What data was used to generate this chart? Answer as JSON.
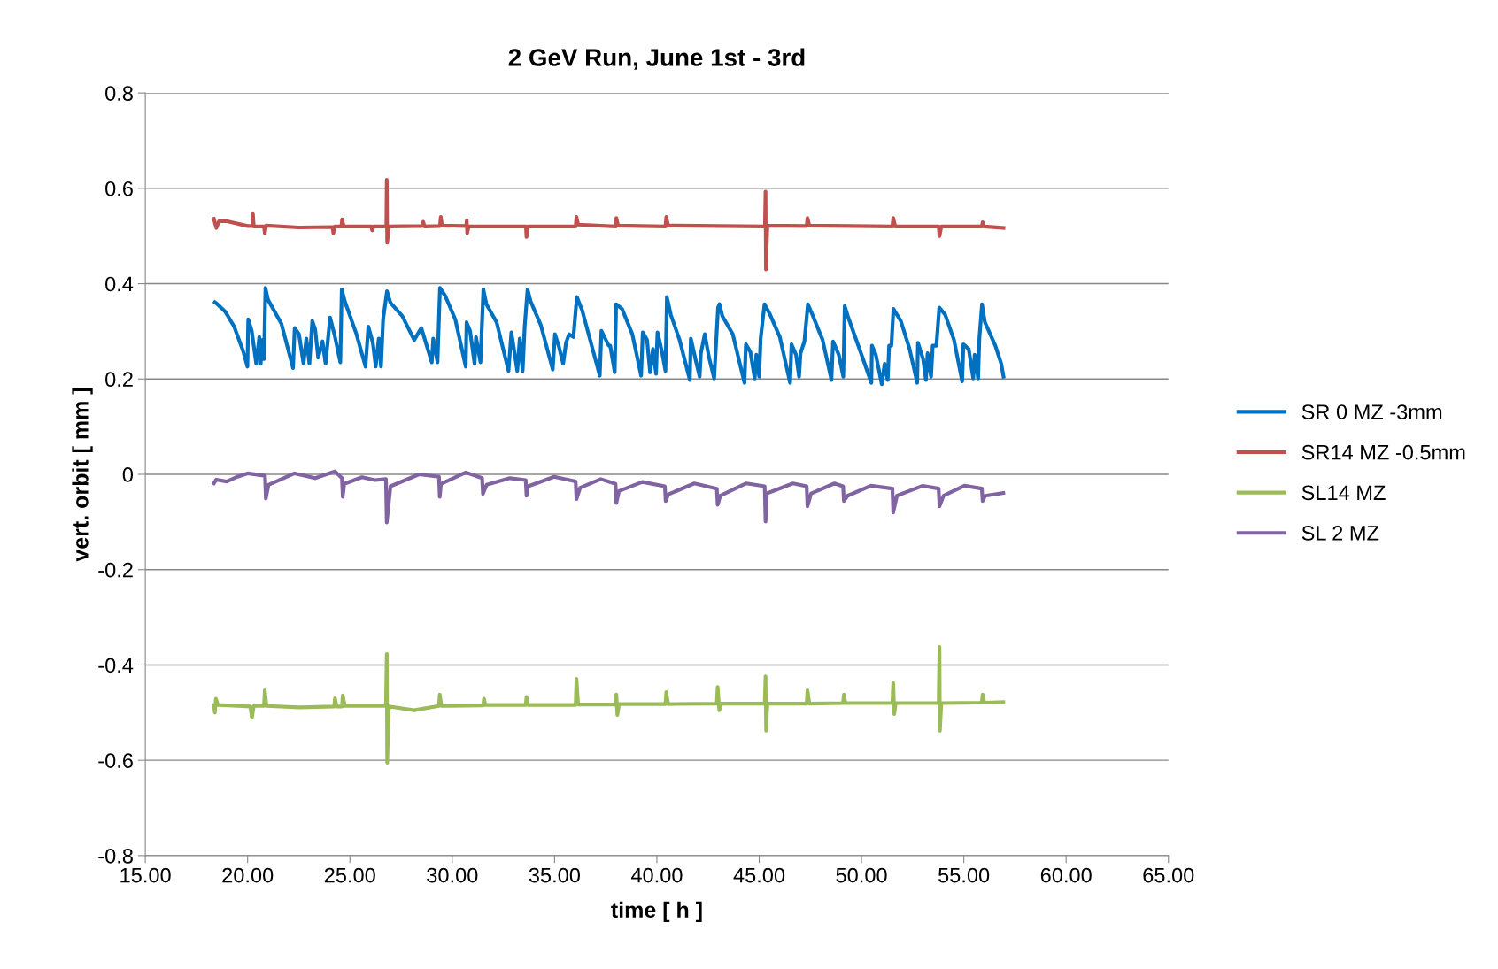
{
  "chart_data": {
    "type": "line",
    "title": "2 GeV Run, June 1st - 3rd",
    "xlabel": "time [ h ]",
    "ylabel": "vert. orbit [ mm ]",
    "xlim": [
      15,
      65
    ],
    "ylim": [
      -0.8,
      0.8
    ],
    "xticks": [
      {
        "value": 15,
        "label": "15.00"
      },
      {
        "value": 20,
        "label": "20.00"
      },
      {
        "value": 25,
        "label": "25.00"
      },
      {
        "value": 30,
        "label": "30.00"
      },
      {
        "value": 35,
        "label": "35.00"
      },
      {
        "value": 40,
        "label": "40.00"
      },
      {
        "value": 45,
        "label": "45.00"
      },
      {
        "value": 50,
        "label": "50.00"
      },
      {
        "value": 55,
        "label": "55.00"
      },
      {
        "value": 60,
        "label": "60.00"
      },
      {
        "value": 65,
        "label": "65.00"
      }
    ],
    "yticks": [
      {
        "value": -0.8,
        "label": "-0.8"
      },
      {
        "value": -0.6,
        "label": "-0.6"
      },
      {
        "value": -0.4,
        "label": "-0.4"
      },
      {
        "value": -0.2,
        "label": "-0.2"
      },
      0,
      0.2,
      0.4,
      0.6,
      0.8
    ],
    "grid": "y",
    "legend": "right",
    "marker": "none",
    "line_style": "solid",
    "series": [
      {
        "name": "SR 0 MZ -3mm",
        "color": "#0070c0",
        "x": [
          18.4,
          18.5,
          18.91,
          19.34,
          19.77,
          19.99,
          20.03,
          20.2,
          20.42,
          20.57,
          20.64,
          20.72,
          20.8,
          20.87,
          21.0,
          21.65,
          22.22,
          22.3,
          22.51,
          22.73,
          22.87,
          23.02,
          23.16,
          23.3,
          23.45,
          23.66,
          23.81,
          24.03,
          24.24,
          24.53,
          24.6,
          24.75,
          25.32,
          25.76,
          25.9,
          26.12,
          26.26,
          26.41,
          26.52,
          26.62,
          26.81,
          26.98,
          27.56,
          28.14,
          28.49,
          29.0,
          29.07,
          29.28,
          29.4,
          29.65,
          30.15,
          30.66,
          30.7,
          30.87,
          31.09,
          31.16,
          31.38,
          31.52,
          31.67,
          32.17,
          32.75,
          32.89,
          33.18,
          33.3,
          33.44,
          33.54,
          33.68,
          33.83,
          34.33,
          34.91,
          35.02,
          35.2,
          35.42,
          35.56,
          35.71,
          35.92,
          36.09,
          36.35,
          37.21,
          37.29,
          37.65,
          37.72,
          37.94,
          38.01,
          38.3,
          38.8,
          39.23,
          39.31,
          39.52,
          39.67,
          39.81,
          39.96,
          40.03,
          40.25,
          40.42,
          40.49,
          40.68,
          41.11,
          41.61,
          41.66,
          41.9,
          42.09,
          42.15,
          42.34,
          42.55,
          42.8,
          42.99,
          43.06,
          43.2,
          43.71,
          44.28,
          44.35,
          44.57,
          44.78,
          44.86,
          45.0,
          45.07,
          45.26,
          45.5,
          46.01,
          46.51,
          46.58,
          46.8,
          46.95,
          47.02,
          47.21,
          47.38,
          47.6,
          48.1,
          48.53,
          48.61,
          48.89,
          49.11,
          49.18,
          49.33,
          50.05,
          50.48,
          50.51,
          50.7,
          50.99,
          51.13,
          51.28,
          51.35,
          51.46,
          51.56,
          51.92,
          52.35,
          52.72,
          52.76,
          53.01,
          53.15,
          53.23,
          53.4,
          53.48,
          53.66,
          53.8,
          54.09,
          54.52,
          54.92,
          54.98,
          55.24,
          55.46,
          55.53,
          55.7,
          55.76,
          55.89,
          56.03,
          56.54,
          56.83,
          56.94
        ],
        "values": [
          0.361,
          0.358,
          0.341,
          0.31,
          0.26,
          0.226,
          0.325,
          0.301,
          0.232,
          0.288,
          0.232,
          0.282,
          0.242,
          0.391,
          0.366,
          0.316,
          0.223,
          0.307,
          0.294,
          0.232,
          0.285,
          0.232,
          0.322,
          0.304,
          0.245,
          0.279,
          0.232,
          0.329,
          0.294,
          0.235,
          0.388,
          0.363,
          0.294,
          0.226,
          0.31,
          0.276,
          0.226,
          0.285,
          0.226,
          0.325,
          0.384,
          0.36,
          0.332,
          0.282,
          0.307,
          0.235,
          0.285,
          0.235,
          0.391,
          0.375,
          0.325,
          0.226,
          0.319,
          0.301,
          0.232,
          0.288,
          0.235,
          0.388,
          0.357,
          0.319,
          0.217,
          0.298,
          0.217,
          0.285,
          0.217,
          0.31,
          0.388,
          0.363,
          0.313,
          0.22,
          0.294,
          0.27,
          0.232,
          0.276,
          0.294,
          0.288,
          0.372,
          0.344,
          0.207,
          0.301,
          0.27,
          0.27,
          0.214,
          0.357,
          0.347,
          0.294,
          0.207,
          0.298,
          0.282,
          0.214,
          0.263,
          0.211,
          0.298,
          0.257,
          0.217,
          0.372,
          0.335,
          0.282,
          0.198,
          0.285,
          0.239,
          0.205,
          0.254,
          0.294,
          0.245,
          0.201,
          0.35,
          0.357,
          0.332,
          0.294,
          0.192,
          0.273,
          0.257,
          0.201,
          0.251,
          0.205,
          0.285,
          0.357,
          0.338,
          0.288,
          0.192,
          0.273,
          0.251,
          0.205,
          0.254,
          0.279,
          0.357,
          0.335,
          0.282,
          0.198,
          0.279,
          0.251,
          0.205,
          0.353,
          0.332,
          0.245,
          0.192,
          0.27,
          0.251,
          0.189,
          0.232,
          0.198,
          0.27,
          0.27,
          0.347,
          0.322,
          0.263,
          0.192,
          0.276,
          0.242,
          0.198,
          0.254,
          0.205,
          0.27,
          0.27,
          0.35,
          0.335,
          0.282,
          0.195,
          0.273,
          0.263,
          0.201,
          0.251,
          0.201,
          0.285,
          0.357,
          0.319,
          0.27,
          0.232,
          0.205
        ]
      },
      {
        "name": "SR14 MZ -0.5mm",
        "color": "#c0504d",
        "x": [
          18.35,
          18.47,
          18.6,
          19.0,
          20.0,
          20.24,
          20.26,
          20.3,
          20.8,
          20.84,
          20.9,
          22.5,
          24.15,
          24.19,
          24.25,
          24.58,
          24.62,
          24.7,
          26.05,
          26.09,
          26.15,
          26.78,
          26.8,
          26.82,
          26.9,
          28.55,
          28.58,
          28.65,
          29.4,
          29.44,
          29.5,
          30.68,
          30.71,
          30.73,
          30.8,
          33.6,
          33.63,
          33.7,
          36.03,
          36.07,
          36.15,
          37.98,
          38.02,
          38.1,
          40.42,
          40.46,
          40.55,
          45.28,
          45.31,
          45.33,
          45.4,
          47.32,
          47.36,
          47.45,
          51.51,
          51.55,
          51.65,
          53.77,
          53.81,
          53.9,
          55.88,
          55.92,
          56.0,
          56.94
        ],
        "values": [
          0.536,
          0.517,
          0.531,
          0.531,
          0.521,
          0.521,
          0.546,
          0.52,
          0.52,
          0.506,
          0.522,
          0.518,
          0.519,
          0.506,
          0.52,
          0.52,
          0.535,
          0.52,
          0.52,
          0.512,
          0.52,
          0.52,
          0.618,
          0.486,
          0.52,
          0.521,
          0.53,
          0.52,
          0.521,
          0.54,
          0.522,
          0.521,
          0.533,
          0.506,
          0.52,
          0.52,
          0.498,
          0.52,
          0.52,
          0.54,
          0.524,
          0.52,
          0.538,
          0.522,
          0.52,
          0.54,
          0.522,
          0.52,
          0.593,
          0.43,
          0.522,
          0.521,
          0.538,
          0.522,
          0.52,
          0.538,
          0.52,
          0.52,
          0.5,
          0.52,
          0.52,
          0.529,
          0.52,
          0.517
        ]
      },
      {
        "name": "SL14 MZ",
        "color": "#9bbb59",
        "x": [
          18.35,
          18.4,
          18.45,
          18.55,
          20.13,
          20.21,
          20.3,
          20.8,
          20.84,
          20.92,
          22.54,
          24.23,
          24.27,
          24.35,
          24.61,
          24.65,
          24.75,
          26.76,
          26.8,
          26.82,
          26.9,
          28.13,
          29.35,
          29.39,
          29.47,
          31.51,
          31.55,
          31.62,
          33.59,
          33.63,
          33.7,
          36.03,
          36.07,
          36.15,
          37.98,
          38.02,
          38.07,
          38.15,
          40.42,
          40.46,
          40.55,
          42.93,
          42.97,
          43.05,
          43.15,
          45.27,
          45.31,
          45.34,
          45.4,
          47.32,
          47.36,
          47.45,
          49.1,
          49.14,
          49.22,
          51.51,
          51.55,
          51.6,
          51.67,
          53.77,
          53.81,
          53.83,
          53.9,
          55.88,
          55.92,
          56.0,
          56.93
        ],
        "values": [
          -0.484,
          -0.5,
          -0.471,
          -0.484,
          -0.487,
          -0.511,
          -0.486,
          -0.486,
          -0.453,
          -0.486,
          -0.489,
          -0.487,
          -0.47,
          -0.487,
          -0.487,
          -0.464,
          -0.486,
          -0.486,
          -0.377,
          -0.605,
          -0.487,
          -0.495,
          -0.486,
          -0.462,
          -0.486,
          -0.485,
          -0.471,
          -0.484,
          -0.484,
          -0.467,
          -0.484,
          -0.484,
          -0.429,
          -0.483,
          -0.483,
          -0.462,
          -0.505,
          -0.482,
          -0.482,
          -0.457,
          -0.482,
          -0.481,
          -0.446,
          -0.495,
          -0.481,
          -0.481,
          -0.424,
          -0.538,
          -0.481,
          -0.481,
          -0.453,
          -0.481,
          -0.48,
          -0.462,
          -0.48,
          -0.48,
          -0.438,
          -0.503,
          -0.48,
          -0.48,
          -0.362,
          -0.538,
          -0.48,
          -0.479,
          -0.462,
          -0.479,
          -0.478
        ]
      },
      {
        "name": "SL 2 MZ",
        "color": "#8064a2",
        "x": [
          18.35,
          18.47,
          18.98,
          19.5,
          20.0,
          20.85,
          20.89,
          21.02,
          22.29,
          23.3,
          24.27,
          24.61,
          24.65,
          24.72,
          25.59,
          26.22,
          26.76,
          26.8,
          26.98,
          28.38,
          29.35,
          29.39,
          29.45,
          30.66,
          31.46,
          31.5,
          31.68,
          32.82,
          33.59,
          33.63,
          33.71,
          34.98,
          36.03,
          36.07,
          36.25,
          37.26,
          37.98,
          38.02,
          38.15,
          39.29,
          40.39,
          40.43,
          40.56,
          41.83,
          42.93,
          42.97,
          43.1,
          44.37,
          45.27,
          45.31,
          45.38,
          46.65,
          47.32,
          47.36,
          47.54,
          48.68,
          49.1,
          49.14,
          49.32,
          50.46,
          51.51,
          51.55,
          51.73,
          53.0,
          53.77,
          53.81,
          54.01,
          55.03,
          55.88,
          55.92,
          56.04,
          56.93
        ],
        "values": [
          -0.019,
          -0.011,
          -0.015,
          -0.005,
          0.002,
          -0.003,
          -0.051,
          -0.022,
          0.002,
          -0.008,
          0.006,
          -0.008,
          -0.047,
          -0.02,
          -0.006,
          -0.012,
          -0.01,
          -0.101,
          -0.025,
          0.0,
          -0.005,
          -0.047,
          -0.02,
          0.004,
          -0.008,
          -0.041,
          -0.022,
          -0.008,
          -0.012,
          -0.045,
          -0.025,
          -0.005,
          -0.015,
          -0.052,
          -0.028,
          -0.01,
          -0.02,
          -0.06,
          -0.035,
          -0.016,
          -0.025,
          -0.056,
          -0.042,
          -0.019,
          -0.03,
          -0.064,
          -0.045,
          -0.019,
          -0.025,
          -0.099,
          -0.04,
          -0.019,
          -0.025,
          -0.067,
          -0.04,
          -0.019,
          -0.025,
          -0.056,
          -0.045,
          -0.024,
          -0.03,
          -0.08,
          -0.045,
          -0.024,
          -0.03,
          -0.067,
          -0.045,
          -0.024,
          -0.03,
          -0.056,
          -0.045,
          -0.039
        ]
      }
    ]
  }
}
